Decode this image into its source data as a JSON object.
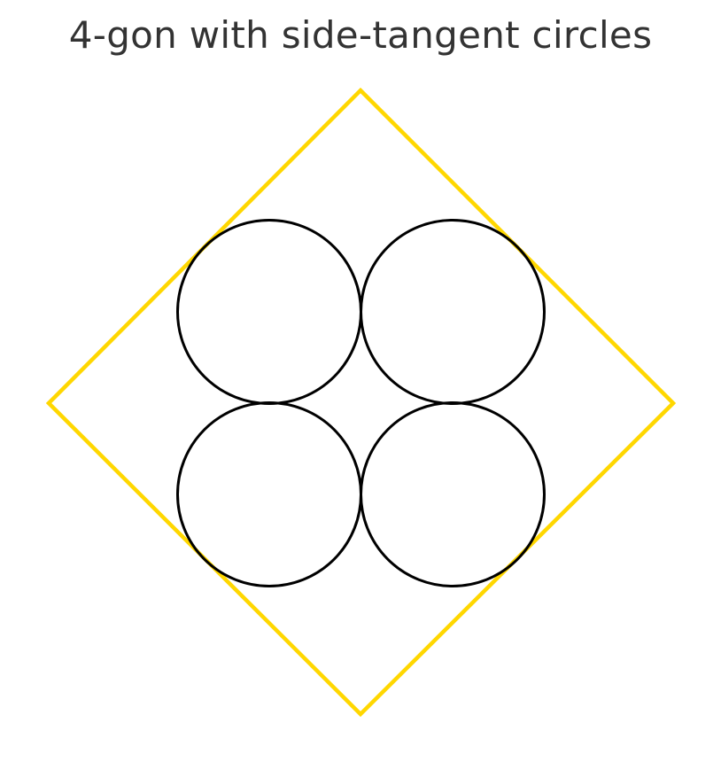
{
  "title": "4-gon with side-tangent circles",
  "colors": {
    "polygon": "#ffd700",
    "circles": "#000000",
    "title": "#333333",
    "background": "#ffffff"
  },
  "shape": {
    "polygon_sides": 4,
    "circle_count": 4
  }
}
